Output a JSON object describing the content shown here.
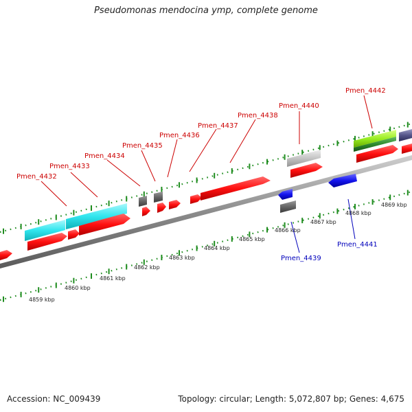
{
  "title": "Pseudomonas mendocina ymp, complete genome",
  "accession_text": "Accession: NC_009439",
  "summary_text": "Topology: circular; Length: 5,072,807 bp; Genes: 4,675",
  "colors": {
    "forward_gene": "#ff1a1a",
    "reverse_gene": "#1a1aee",
    "tick_green": "#1e8c1e",
    "label_red": "#cc0000",
    "label_blue": "#0000bb",
    "backbone": "#909090",
    "cyan_feature": "#33e6ee",
    "gray_feature": "#6e6e6e",
    "lightgray_feature": "#c8c8c8",
    "lime_feature": "#99ee22",
    "green_feature": "#2e8b2e",
    "purple_feature": "#55558a"
  },
  "gene_labels": {
    "Pmen_4432": "Pmen_4432",
    "Pmen_4433": "Pmen_4433",
    "Pmen_4434": "Pmen_4434",
    "Pmen_4435": "Pmen_4435",
    "Pmen_4436": "Pmen_4436",
    "Pmen_4437": "Pmen_4437",
    "Pmen_4438": "Pmen_4438",
    "Pmen_4439": "Pmen_4439",
    "Pmen_4440": "Pmen_4440",
    "Pmen_4441": "Pmen_4441",
    "Pmen_4442": "Pmen_4442"
  },
  "axis_ticks": {
    "t4859": "4859 kbp",
    "t4860": "4860 kbp",
    "t4861": "4861 kbp",
    "t4862": "4862 kbp",
    "t4863": "4863 kbp",
    "t4864": "4864 kbp",
    "t4865": "4865 kbp",
    "t4866": "4866 kbp",
    "t4867": "4867 kbp",
    "t4868": "4868 kbp",
    "t4869": "4869 kbp"
  }
}
